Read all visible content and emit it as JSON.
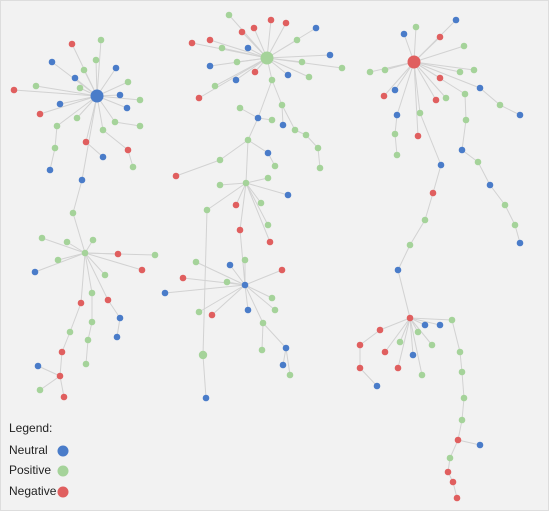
{
  "legend": {
    "title": "Legend:",
    "items": [
      {
        "label": "Neutral",
        "color": "#4a7cc9"
      },
      {
        "label": "Positive",
        "color": "#a5d39a"
      },
      {
        "label": "Negative",
        "color": "#e05f5f"
      }
    ]
  }
}
